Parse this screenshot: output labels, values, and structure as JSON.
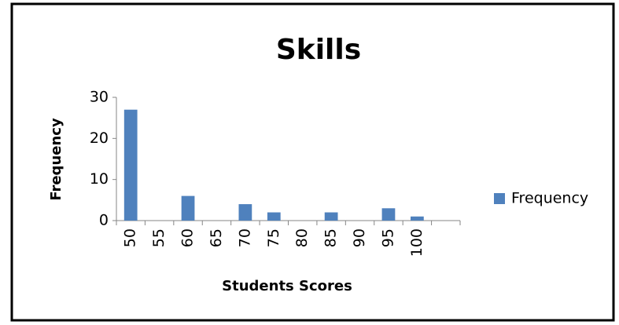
{
  "chart_data": {
    "type": "bar",
    "title": "Skills",
    "xlabel": "Students Scores",
    "ylabel": "Frequency",
    "categories": [
      "50",
      "55",
      "60",
      "65",
      "70",
      "75",
      "80",
      "85",
      "90",
      "95",
      "100",
      null
    ],
    "series": [
      {
        "name": "Frequency",
        "color": "#4f81bd",
        "values": [
          27,
          0,
          6,
          0,
          4,
          2,
          0,
          2,
          0,
          3,
          1,
          null
        ]
      }
    ],
    "ylim": [
      0,
      30
    ],
    "yticks": [
      0,
      10,
      20,
      30
    ],
    "grid": false,
    "legend": "right"
  }
}
